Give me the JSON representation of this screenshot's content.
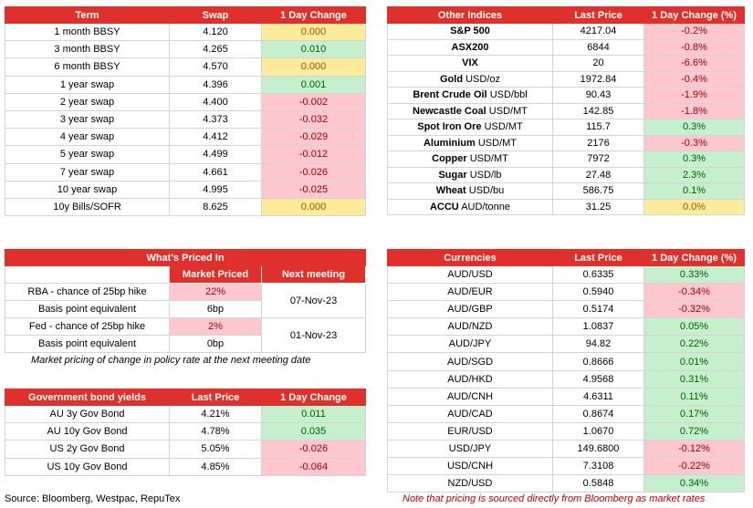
{
  "swaps": {
    "header": [
      "Term",
      "Swap",
      "1 Day Change"
    ],
    "rows": [
      [
        "1 month BBSY",
        "4.120",
        "0.000"
      ],
      [
        "3 month BBSY",
        "4.265",
        "0.010"
      ],
      [
        "6 month BBSY",
        "4.570",
        "0.000"
      ],
      [
        "1 year swap",
        "4.396",
        "0.001"
      ],
      [
        "2 year swap",
        "4.400",
        "-0.002"
      ],
      [
        "3 year swap",
        "4.373",
        "-0.032"
      ],
      [
        "4 year swap",
        "4.412",
        "-0.029"
      ],
      [
        "5 year swap",
        "4.499",
        "-0.012"
      ],
      [
        "7 year swap",
        "4.661",
        "-0.026"
      ],
      [
        "10 year swap",
        "4.995",
        "-0.025"
      ],
      [
        "10y Bills/SOFR",
        "8.625",
        "0.000"
      ]
    ]
  },
  "indices": {
    "header": [
      "Other Indices",
      "Last Price",
      "1 Day Change (%)"
    ],
    "rows": [
      {
        "name": "S&P 500",
        "last": "4217.04",
        "change": "-0.2%"
      },
      {
        "name": "ASX200",
        "last": "6844",
        "change": "-0.8%"
      },
      {
        "name": "VIX",
        "last": "20",
        "change": "-6.6%"
      },
      {
        "name": "Gold",
        "unit": "USD/oz",
        "last": "1972.84",
        "change": "-0.4%"
      },
      {
        "name": "Brent Crude Oil",
        "unit": "USD/bbl",
        "last": "90.43",
        "change": "-1.9%"
      },
      {
        "name": "Newcastle Coal",
        "unit": "USD/MT",
        "last": "142.85",
        "change": "-1.8%"
      },
      {
        "name": "Spot Iron Ore",
        "unit": "USD/MT",
        "last": "115.7",
        "change": "0.3%"
      },
      {
        "name": "Aluminium",
        "unit": "USD/MT",
        "last": "2176",
        "change": "-0.3%"
      },
      {
        "name": "Copper",
        "unit": "USD/MT",
        "last": "7972",
        "change": "0.3%"
      },
      {
        "name": "Sugar",
        "unit": "USD/lb",
        "last": "27.48",
        "change": "2.3%"
      },
      {
        "name": "Wheat",
        "unit": "USD/bu",
        "last": "586.75",
        "change": "0.1%"
      },
      {
        "name": "ACCU",
        "unit": "AUD/tonne",
        "last": "31.25",
        "change": "0.0%"
      }
    ]
  },
  "priced_in": {
    "title": "What's Priced In",
    "columns": [
      "Market Priced",
      "Next meeting"
    ],
    "groups": [
      {
        "rows": [
          [
            "RBA - chance of 25bp hike",
            "22%"
          ],
          [
            "Basis point equivalent",
            "6bp"
          ]
        ],
        "meeting": "07-Nov-23"
      },
      {
        "rows": [
          [
            "Fed - chance of 25bp hike",
            "2%"
          ],
          [
            "Basis point equivalent",
            "0bp"
          ]
        ],
        "meeting": "01-Nov-23"
      }
    ],
    "note": "Market pricing of change in policy rate at the next meeting date"
  },
  "bonds": {
    "header": [
      "Government bond yields",
      "Last Price",
      "1 Day Change"
    ],
    "rows": [
      [
        "AU 3y Gov Bond",
        "4.21%",
        "0.011"
      ],
      [
        "AU 10y Gov Bond",
        "4.78%",
        "0.035"
      ],
      [
        "US 2y Gov Bond",
        "5.05%",
        "-0.026"
      ],
      [
        "US 10y Gov Bond",
        "4.85%",
        "-0.064"
      ]
    ]
  },
  "currencies": {
    "header": [
      "Currencies",
      "Last Price",
      "1 Day Change (%)"
    ],
    "rows": [
      [
        "AUD/USD",
        "0.6335",
        "0.33%"
      ],
      [
        "AUD/EUR",
        "0.5940",
        "-0.34%"
      ],
      [
        "AUD/GBP",
        "0.5174",
        "-0.32%"
      ],
      [
        "AUD/NZD",
        "1.0837",
        "0.05%"
      ],
      [
        "AUD/JPY",
        "94.82",
        "0.22%"
      ],
      [
        "AUD/SGD",
        "0.8666",
        "0.01%"
      ],
      [
        "AUD/HKD",
        "4.9568",
        "0.31%"
      ],
      [
        "AUD/CNH",
        "4.6311",
        "0.11%"
      ],
      [
        "AUD/CAD",
        "0.8674",
        "0.17%"
      ],
      [
        "EUR/USD",
        "1.0670",
        "0.72%"
      ],
      [
        "USD/JPY",
        "149.6800",
        "-0.12%"
      ],
      [
        "USD/CNH",
        "7.3108",
        "-0.22%"
      ],
      [
        "NZD/USD",
        "0.5848",
        "0.34%"
      ]
    ]
  },
  "footer": {
    "source": "Source: Bloomberg, Westpac, RepuTex",
    "disclaimer": "Note that pricing is sourced directly from Bloomberg as market rates"
  }
}
